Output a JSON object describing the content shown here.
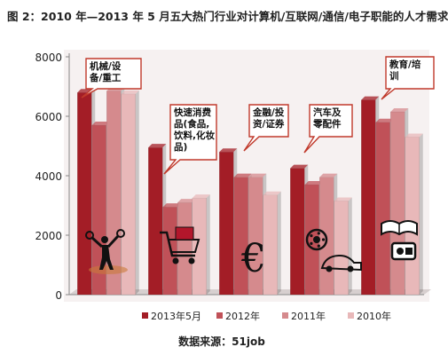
{
  "figure_title": "图 2：2010 年—2013 年 5 月五大热门行业对计算机/互联网/通信/电子职能的人才需求",
  "source_note": "数据来源：51job",
  "colors": {
    "2013年5月": "#a31d26",
    "2012年": "#c05158",
    "2011年": "#d58a8d",
    "2010年": "#e8b8b9",
    "callout_border": "#c0392b"
  },
  "chart_data": {
    "type": "bar",
    "categories": [
      "机械/设备/重工",
      "快速消费品(食品,饮料,化妆品)",
      "金融/投资/证券",
      "汽车及零配件",
      "教育/培训"
    ],
    "category_icons": [
      "mechanic-icon",
      "shopping-cart-icon",
      "euro-icon",
      "car-parts-icon",
      "education-icon"
    ],
    "series": [
      {
        "name": "2013年5月",
        "values": [
          6800,
          4950,
          4800,
          4250,
          6550
        ]
      },
      {
        "name": "2012年",
        "values": [
          5700,
          2950,
          3950,
          3700,
          5800
        ]
      },
      {
        "name": "2011年",
        "values": [
          6850,
          3100,
          3950,
          3950,
          6150
        ]
      },
      {
        "name": "2010年",
        "values": [
          6750,
          3250,
          3350,
          3150,
          5300
        ]
      }
    ],
    "yticks": [
      "0",
      "2000",
      "4000",
      "6000",
      "8000"
    ],
    "ylim": [
      0,
      8000
    ],
    "grid": false,
    "legend_position": "bottom"
  }
}
